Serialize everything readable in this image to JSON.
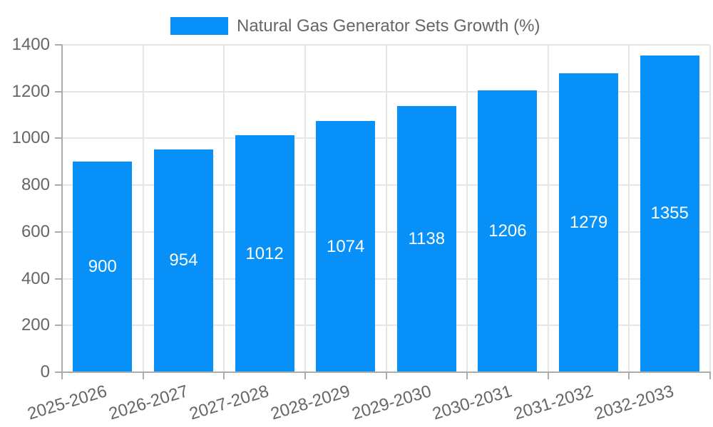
{
  "chart_data": {
    "type": "bar",
    "title": "",
    "legend_label": "Natural Gas Generator Sets Growth (%)",
    "legend_position": "top",
    "categories": [
      "2025-2026",
      "2026-2027",
      "2027-2028",
      "2028-2029",
      "2029-2030",
      "2030-2031",
      "2031-2032",
      "2032-2033"
    ],
    "values": [
      900,
      954,
      1012,
      1074,
      1138,
      1206,
      1279,
      1355
    ],
    "xlabel": "",
    "ylabel": "",
    "ylim": [
      0,
      1400
    ],
    "ytick_step": 200,
    "ytick_labels": [
      "0",
      "200",
      "400",
      "600",
      "800",
      "1000",
      "1200",
      "1400"
    ],
    "grid": "on",
    "bar_label_position": "center",
    "colors": {
      "bar": "#0690f8",
      "bar_value_text": "#ffffff",
      "axis_text": "#666666",
      "grid_line": "#e6e6e6",
      "axis_line": "#ababab",
      "background": "#ffffff"
    }
  }
}
